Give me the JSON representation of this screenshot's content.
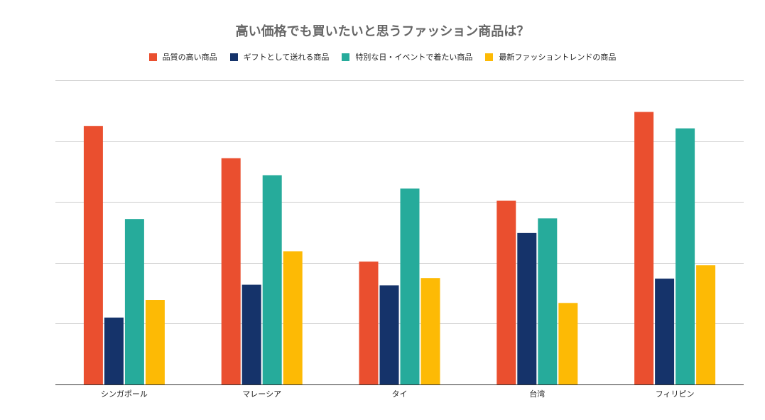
{
  "chart_data": {
    "type": "bar",
    "title": "高い価格でも買いたいと思うファッション商品は？",
    "categories": [
      "シンガポール",
      "マレーシア",
      "タイ",
      "台湾",
      "フィリピン"
    ],
    "series": [
      {
        "name": "品質の高い商品",
        "color": "#EA4F2F",
        "values": [
          42.5,
          37.2,
          20.2,
          30.2,
          44.8
        ]
      },
      {
        "name": "ギフトとして送れる商品",
        "color": "#15336A",
        "values": [
          11.0,
          16.4,
          16.3,
          24.9,
          17.4
        ]
      },
      {
        "name": "特別な日・イベントで着たい商品",
        "color": "#26AB9B",
        "values": [
          27.2,
          34.4,
          32.2,
          27.3,
          42.1
        ]
      },
      {
        "name": "最新ファッショントレンドの商品",
        "color": "#FDBA05",
        "values": [
          13.9,
          21.9,
          17.5,
          13.4,
          19.6
        ]
      }
    ],
    "ylim": [
      0,
      50
    ],
    "grid": true,
    "legend": "top"
  }
}
